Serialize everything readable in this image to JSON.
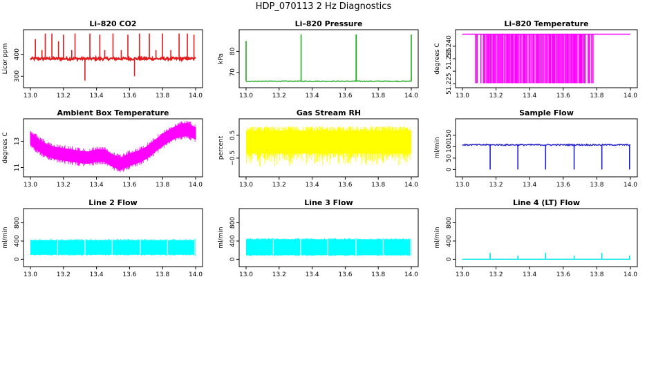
{
  "figure_title": "HDP_070113  2 Hz Diagnostics",
  "chart_data": [
    {
      "type": "line",
      "title": "Li–820 CO2",
      "xlabel": "",
      "ylabel": "Licor ppm",
      "xlim": [
        13.0,
        14.0
      ],
      "ylim": [
        260,
        500
      ],
      "xticks": [
        13.0,
        13.2,
        13.4,
        13.6,
        13.8,
        14.0
      ],
      "yticks": [
        300,
        400
      ],
      "color": "#e41a1c",
      "baseline": 380,
      "noise": 6,
      "spikes": [
        {
          "x": 13.03,
          "v": 470
        },
        {
          "x": 13.07,
          "v": 420
        },
        {
          "x": 13.09,
          "v": 495
        },
        {
          "x": 13.13,
          "v": 495
        },
        {
          "x": 13.17,
          "v": 460
        },
        {
          "x": 13.2,
          "v": 490
        },
        {
          "x": 13.25,
          "v": 420
        },
        {
          "x": 13.27,
          "v": 495
        },
        {
          "x": 13.33,
          "v": 280
        },
        {
          "x": 13.36,
          "v": 495
        },
        {
          "x": 13.42,
          "v": 490
        },
        {
          "x": 13.45,
          "v": 420
        },
        {
          "x": 13.5,
          "v": 495
        },
        {
          "x": 13.55,
          "v": 420
        },
        {
          "x": 13.59,
          "v": 490
        },
        {
          "x": 13.63,
          "v": 300
        },
        {
          "x": 13.66,
          "v": 495
        },
        {
          "x": 13.72,
          "v": 495
        },
        {
          "x": 13.76,
          "v": 420
        },
        {
          "x": 13.8,
          "v": 495
        },
        {
          "x": 13.85,
          "v": 420
        },
        {
          "x": 13.9,
          "v": 495
        },
        {
          "x": 13.95,
          "v": 495
        },
        {
          "x": 13.99,
          "v": 490
        }
      ]
    },
    {
      "type": "line",
      "title": "Li–820 Pressure",
      "xlabel": "",
      "ylabel": "kPa",
      "xlim": [
        13.0,
        14.0
      ],
      "ylim": [
        64,
        89
      ],
      "xticks": [
        13.0,
        13.2,
        13.4,
        13.6,
        13.8,
        14.0
      ],
      "yticks": [
        70,
        80
      ],
      "color": "#1faa1f",
      "baseline": 65.8,
      "noise": 0.15,
      "spikes": [
        {
          "x": 13.0,
          "v": 85
        },
        {
          "x": 13.333,
          "v": 88
        },
        {
          "x": 13.666,
          "v": 88
        },
        {
          "x": 13.667,
          "v": 88
        },
        {
          "x": 14.0,
          "v": 88
        }
      ]
    },
    {
      "type": "line",
      "title": "Li–820 Temperature",
      "xlabel": "",
      "ylabel": "degrees C",
      "xlim": [
        13.0,
        14.0
      ],
      "ylim": [
        51.2245,
        51.2455
      ],
      "xticks": [
        13.0,
        13.2,
        13.4,
        13.6,
        13.8,
        14.0
      ],
      "yticks": [
        51.225,
        51.23,
        51.235,
        51.24
      ],
      "ytick_labels": [
        "51.225",
        "",
        "51.235",
        "51.240"
      ],
      "color": "#ff00ff",
      "high": 51.2448,
      "low": 51.2252,
      "dense_range": [
        13.07,
        13.78
      ]
    },
    {
      "type": "area",
      "title": "Ambient Box Temperature",
      "xlabel": "",
      "ylabel": "degrees C",
      "xlim": [
        13.0,
        14.0
      ],
      "ylim": [
        10.5,
        14.5
      ],
      "xticks": [
        13.0,
        13.2,
        13.4,
        13.6,
        13.8,
        14.0
      ],
      "yticks": [
        11,
        13
      ],
      "color": "#ff00ff",
      "series": {
        "x": [
          13.0,
          13.05,
          13.1,
          13.15,
          13.2,
          13.25,
          13.3,
          13.35,
          13.4,
          13.45,
          13.5,
          13.55,
          13.6,
          13.65,
          13.7,
          13.75,
          13.8,
          13.85,
          13.9,
          13.95,
          14.0
        ],
        "y": [
          13.2,
          12.7,
          12.3,
          12.1,
          12.0,
          11.9,
          11.8,
          11.75,
          11.9,
          11.9,
          11.5,
          11.3,
          11.6,
          11.8,
          12.1,
          12.6,
          13.1,
          13.5,
          13.8,
          13.9,
          13.6
        ]
      },
      "band": 0.45
    },
    {
      "type": "area",
      "title": "Gas Stream RH",
      "xlabel": "",
      "ylabel": "percent",
      "xlim": [
        13.0,
        14.0
      ],
      "ylim": [
        -1.2,
        1.1
      ],
      "xticks": [
        13.0,
        13.2,
        13.4,
        13.6,
        13.8,
        14.0
      ],
      "yticks": [
        -0.5,
        0.5
      ],
      "ytick_labels": [
        "−0.5",
        "0.5"
      ],
      "color": "#ffff00",
      "upper": 0.7,
      "lower": -0.3,
      "spike_low": -0.9,
      "spike_high": 0.9
    },
    {
      "type": "line",
      "title": "Sample Flow",
      "xlabel": "",
      "ylabel": "ml/min",
      "xlim": [
        13.0,
        14.0
      ],
      "ylim": [
        -20,
        210
      ],
      "xticks": [
        13.0,
        13.2,
        13.4,
        13.6,
        13.8,
        14.0
      ],
      "yticks": [
        0,
        50,
        100,
        150
      ],
      "color": "#1f1fcf",
      "baseline": 108,
      "noise": 3,
      "dips": [
        {
          "x": 13.165,
          "v": 0
        },
        {
          "x": 13.33,
          "v": 0
        },
        {
          "x": 13.495,
          "v": 0
        },
        {
          "x": 13.665,
          "v": 0
        },
        {
          "x": 13.83,
          "v": 0
        },
        {
          "x": 13.995,
          "v": 0
        }
      ]
    },
    {
      "type": "area",
      "title": "Line 2 Flow",
      "xlabel": "",
      "ylabel": "ml/min",
      "xlim": [
        13.0,
        14.0
      ],
      "ylim": [
        -100,
        1050
      ],
      "xticks": [
        13.0,
        13.2,
        13.4,
        13.6,
        13.8,
        14.0
      ],
      "yticks": [
        0,
        400,
        800
      ],
      "color": "#00ffff",
      "upper": 420,
      "lower": 100,
      "gaps": [
        13.165,
        13.33,
        13.495,
        13.665,
        13.83,
        13.995
      ]
    },
    {
      "type": "area",
      "title": "Line 3 Flow",
      "xlabel": "",
      "ylabel": "ml/min",
      "xlim": [
        13.0,
        14.0
      ],
      "ylim": [
        -100,
        1050
      ],
      "xticks": [
        13.0,
        13.2,
        13.4,
        13.6,
        13.8,
        14.0
      ],
      "yticks": [
        0,
        400,
        800
      ],
      "color": "#00ffff",
      "upper": 440,
      "lower": 90,
      "gaps": [
        13.165,
        13.33,
        13.495,
        13.665,
        13.83,
        13.995
      ]
    },
    {
      "type": "line",
      "title": "Line 4 (LT) Flow",
      "xlabel": "",
      "ylabel": "ml/min",
      "xlim": [
        13.0,
        14.0
      ],
      "ylim": [
        -100,
        1050
      ],
      "xticks": [
        13.0,
        13.2,
        13.4,
        13.6,
        13.8,
        14.0
      ],
      "yticks": [
        0,
        400,
        800
      ],
      "color": "#00e5e5",
      "baseline": 2,
      "noise": 0,
      "spikes": [
        {
          "x": 13.165,
          "v": 140
        },
        {
          "x": 13.33,
          "v": 80
        },
        {
          "x": 13.495,
          "v": 140
        },
        {
          "x": 13.665,
          "v": 80
        },
        {
          "x": 13.83,
          "v": 140
        },
        {
          "x": 13.995,
          "v": 80
        }
      ]
    }
  ]
}
